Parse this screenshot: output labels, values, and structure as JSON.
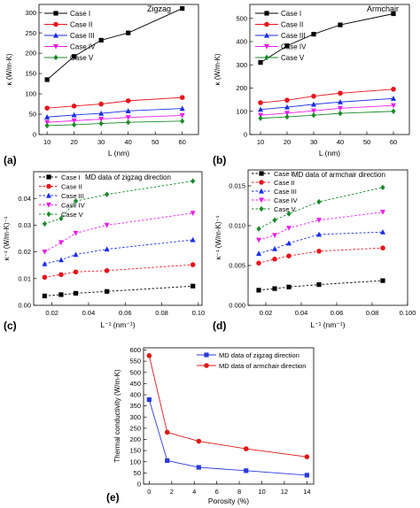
{
  "figure": {
    "panel_labels": [
      "(a)",
      "(b)",
      "(c)",
      "(d)",
      "(e)"
    ],
    "colors": {
      "case1": "#000000",
      "case2": "#e8141e",
      "case3": "#1a2ee8",
      "case4": "#e820e8",
      "case5": "#1a8a2a",
      "zigzag": "#2a3adc",
      "armchair": "#e01818"
    }
  },
  "chart_data": [
    {
      "type": "line",
      "panel": "(a)",
      "title": "Zigzag",
      "xlabel": "L (nm)",
      "ylabel": "κ (W/m-K)",
      "xlim": [
        7,
        66
      ],
      "ylim": [
        0,
        320
      ],
      "xticks": [
        10,
        20,
        30,
        40,
        50,
        60
      ],
      "yticks": [
        0,
        50,
        100,
        150,
        200,
        250,
        300
      ],
      "legend": "top-left",
      "line_style": "solid",
      "x": [
        10,
        20,
        30,
        40,
        60
      ],
      "series": [
        {
          "name": "Case I",
          "marker": "square",
          "color": "#000000",
          "values": [
            135,
            192,
            232,
            250,
            310
          ]
        },
        {
          "name": "Case II",
          "marker": "circle",
          "color": "#e8141e",
          "values": [
            65,
            70,
            75,
            83,
            91
          ]
        },
        {
          "name": "Case III",
          "marker": "triangle-up",
          "color": "#1a2ee8",
          "values": [
            43,
            48,
            52,
            58,
            64
          ]
        },
        {
          "name": "Case IV",
          "marker": "triangle-down",
          "color": "#e820e8",
          "values": [
            30,
            34,
            38,
            42,
            47
          ]
        },
        {
          "name": "Case V",
          "marker": "diamond",
          "color": "#1a8a2a",
          "values": [
            22,
            24,
            27,
            30,
            33
          ]
        }
      ]
    },
    {
      "type": "line",
      "panel": "(b)",
      "title": "Armchair",
      "xlabel": "L (nm)",
      "ylabel": "κ (W/m-K)",
      "xlim": [
        6,
        66
      ],
      "ylim": [
        0,
        560
      ],
      "xticks": [
        10,
        20,
        30,
        40,
        50,
        60
      ],
      "yticks": [
        0,
        100,
        200,
        300,
        400,
        500
      ],
      "legend": "top-left",
      "line_style": "solid",
      "x": [
        10,
        20,
        30,
        40,
        60
      ],
      "series": [
        {
          "name": "Case I",
          "marker": "square",
          "color": "#000000",
          "values": [
            310,
            382,
            432,
            472,
            520
          ]
        },
        {
          "name": "Case II",
          "marker": "circle",
          "color": "#e8141e",
          "values": [
            137,
            148,
            165,
            178,
            195
          ]
        },
        {
          "name": "Case III",
          "marker": "triangle-up",
          "color": "#1a2ee8",
          "values": [
            108,
            118,
            130,
            140,
            155
          ]
        },
        {
          "name": "Case IV",
          "marker": "triangle-down",
          "color": "#e820e8",
          "values": [
            83,
            92,
            102,
            113,
            125
          ]
        },
        {
          "name": "Case V",
          "marker": "diamond",
          "color": "#1a8a2a",
          "values": [
            70,
            76,
            83,
            91,
            100
          ]
        }
      ]
    },
    {
      "type": "line",
      "panel": "(c)",
      "title": "MD data of zigzag direction",
      "xlabel": "L⁻¹ (nm⁻¹)",
      "ylabel": "κ⁻¹ (W/m-K)⁻¹",
      "xlim": [
        0.01,
        0.102
      ],
      "ylim": [
        0,
        0.05
      ],
      "xticks": [
        0.02,
        0.04,
        0.06,
        0.08,
        0.1
      ],
      "xtick_labels": [
        "0.02",
        "0.04",
        "0.06",
        "0.08",
        "0.10"
      ],
      "yticks": [
        0,
        0.01,
        0.02,
        0.03,
        0.04
      ],
      "ytick_labels": [
        "0.00",
        "0.01",
        "0.02",
        "0.03",
        "0.04"
      ],
      "legend": "top-left",
      "line_style": "dashed",
      "x": [
        0.016,
        0.025,
        0.033,
        0.05,
        0.097
      ],
      "series": [
        {
          "name": "Case I",
          "marker": "square",
          "color": "#000000",
          "values": [
            0.0035,
            0.004,
            0.0045,
            0.0052,
            0.0072
          ]
        },
        {
          "name": "Case II",
          "marker": "circle",
          "color": "#e8141e",
          "values": [
            0.0105,
            0.0115,
            0.0125,
            0.013,
            0.0152
          ]
        },
        {
          "name": "Case III",
          "marker": "triangle-up",
          "color": "#1a2ee8",
          "values": [
            0.0155,
            0.017,
            0.019,
            0.021,
            0.0245
          ]
        },
        {
          "name": "Case IV",
          "marker": "triangle-down",
          "color": "#e820e8",
          "values": [
            0.02,
            0.0235,
            0.027,
            0.03,
            0.0345
          ]
        },
        {
          "name": "Case V",
          "marker": "diamond",
          "color": "#1a8a2a",
          "values": [
            0.0305,
            0.0325,
            0.039,
            0.0415,
            0.0465
          ]
        }
      ]
    },
    {
      "type": "line",
      "panel": "(d)",
      "title": "MD data of armchair direction",
      "xlabel": "L⁻¹ (nm⁻¹)",
      "ylabel": "κ⁻¹ (W/m-K)⁻¹",
      "xlim": [
        0.01,
        0.1
      ],
      "ylim": [
        0,
        0.017
      ],
      "xticks": [
        0.02,
        0.04,
        0.06,
        0.08,
        0.1
      ],
      "xtick_labels": [
        "0.02",
        "0.04",
        "0.06",
        "0.08",
        "0.100"
      ],
      "yticks": [
        0,
        0.005,
        0.01,
        0.015
      ],
      "ytick_labels": [
        "0.000",
        "0.005",
        "0.010",
        "0.015"
      ],
      "legend": "top-left",
      "line_style": "dashed",
      "x": [
        0.016,
        0.025,
        0.033,
        0.05,
        0.086
      ],
      "series": [
        {
          "name": "Case I",
          "marker": "square",
          "color": "#000000",
          "values": [
            0.0019,
            0.0021,
            0.0023,
            0.0026,
            0.0031
          ]
        },
        {
          "name": "Case II",
          "marker": "circle",
          "color": "#e8141e",
          "values": [
            0.0053,
            0.0058,
            0.0062,
            0.0068,
            0.0072
          ]
        },
        {
          "name": "Case III",
          "marker": "triangle-up",
          "color": "#1a2ee8",
          "values": [
            0.0065,
            0.0071,
            0.0078,
            0.0089,
            0.0092
          ]
        },
        {
          "name": "Case IV",
          "marker": "triangle-down",
          "color": "#e820e8",
          "values": [
            0.0082,
            0.0088,
            0.0097,
            0.0107,
            0.0117
          ]
        },
        {
          "name": "Case V",
          "marker": "diamond",
          "color": "#1a8a2a",
          "values": [
            0.0096,
            0.0107,
            0.0115,
            0.013,
            0.0148
          ]
        }
      ]
    },
    {
      "type": "line",
      "panel": "(e)",
      "title": "",
      "xlabel": "Porosity (%)",
      "ylabel": "Thermal conductivity (W/m-K)",
      "xlim": [
        -0.5,
        14.6
      ],
      "ylim": [
        0,
        610
      ],
      "xticks": [
        0,
        2,
        4,
        6,
        8,
        10,
        12,
        14
      ],
      "yticks": [
        0,
        50,
        100,
        150,
        200,
        250,
        300,
        350,
        400,
        450,
        500,
        550,
        600
      ],
      "legend": "top-right",
      "line_style": "solid",
      "x": [
        0,
        1.6,
        4.4,
        8.6,
        14
      ],
      "series": [
        {
          "name": "MD data of zigzag direction",
          "marker": "square",
          "color": "#2a3adc",
          "values": [
            378,
            105,
            75,
            60,
            40
          ]
        },
        {
          "name": "MD data of armchair direction",
          "marker": "circle",
          "color": "#e01818",
          "values": [
            575,
            232,
            192,
            158,
            122
          ]
        }
      ]
    }
  ]
}
